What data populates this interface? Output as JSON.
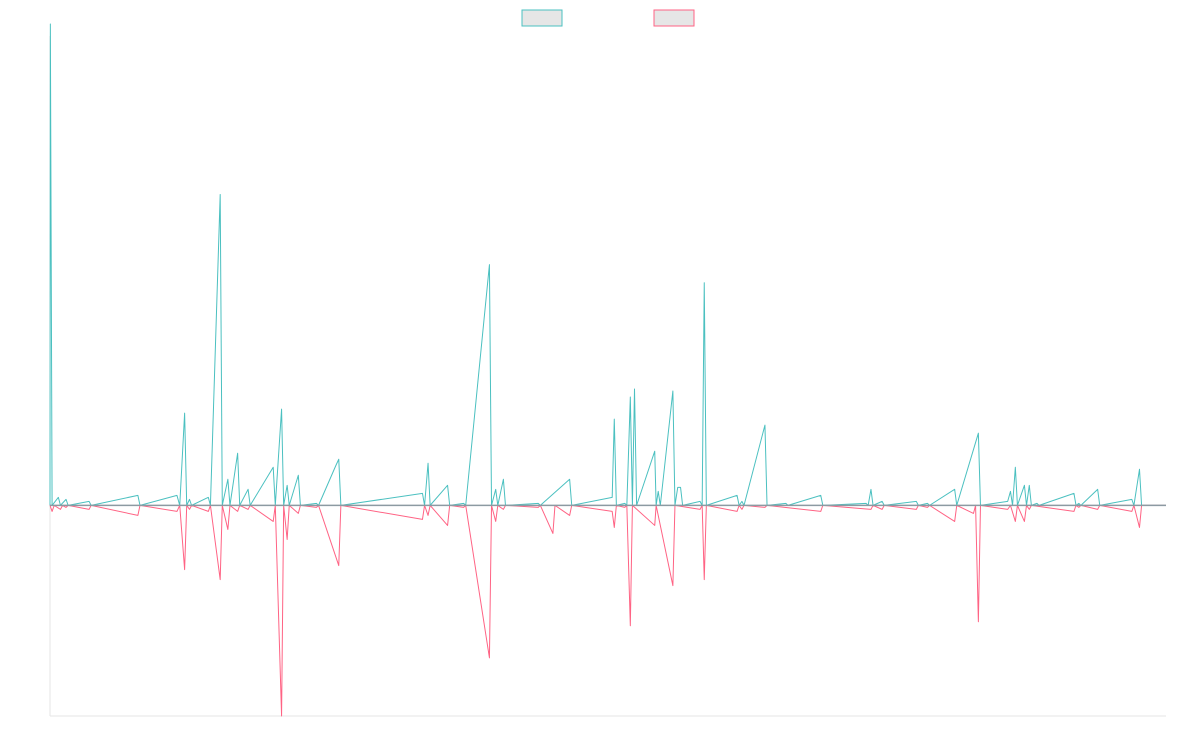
{
  "chart_data": {
    "type": "line",
    "title": "",
    "xlabel": "",
    "ylabel": "",
    "legend": {
      "position": "top-center",
      "entries": [
        {
          "label": "",
          "color": "#4bc0c0"
        },
        {
          "label": "",
          "color": "#ff6384"
        }
      ]
    },
    "x_range": [
      0,
      160
    ],
    "ylim": [
      -10.5,
      23.4
    ],
    "grid": false,
    "baseline": 0,
    "series": [
      {
        "name": "",
        "color": "#4bc0c0",
        "points": [
          [
            0,
            0
          ],
          [
            0.05,
            24.0
          ],
          [
            0.3,
            0
          ],
          [
            1.2,
            0.4
          ],
          [
            1.5,
            0
          ],
          [
            2.3,
            0.3
          ],
          [
            2.6,
            0
          ],
          [
            5.6,
            0.2
          ],
          [
            5.9,
            0
          ],
          [
            12.6,
            0.5
          ],
          [
            12.9,
            0
          ],
          [
            18.2,
            0.5
          ],
          [
            18.6,
            0
          ],
          [
            19.3,
            4.6
          ],
          [
            19.6,
            0
          ],
          [
            20.0,
            0.3
          ],
          [
            20.3,
            0
          ],
          [
            22.7,
            0.4
          ],
          [
            23.0,
            0
          ],
          [
            24.4,
            15.5
          ],
          [
            24.7,
            0
          ],
          [
            25.5,
            1.3
          ],
          [
            25.8,
            0
          ],
          [
            26.9,
            2.6
          ],
          [
            27.2,
            0
          ],
          [
            28.4,
            0.8
          ],
          [
            28.7,
            0
          ],
          [
            32.0,
            1.9
          ],
          [
            32.3,
            0
          ],
          [
            33.2,
            4.8
          ],
          [
            33.5,
            0
          ],
          [
            34.0,
            1.0
          ],
          [
            34.3,
            0
          ],
          [
            35.6,
            1.5
          ],
          [
            35.9,
            0
          ],
          [
            38.2,
            0.1
          ],
          [
            38.5,
            0
          ],
          [
            41.0,
            2.0
          ],
          [
            41.4,
            2.3
          ],
          [
            41.7,
            0
          ],
          [
            53.4,
            0.6
          ],
          [
            53.7,
            0
          ],
          [
            54.2,
            2.1
          ],
          [
            54.5,
            0
          ],
          [
            57.0,
            1.0
          ],
          [
            57.3,
            0
          ],
          [
            59.3,
            0.1
          ],
          [
            59.6,
            0
          ],
          [
            63.0,
            12.0
          ],
          [
            63.3,
            0
          ],
          [
            63.9,
            0.8
          ],
          [
            64.2,
            0
          ],
          [
            65.0,
            1.3
          ],
          [
            65.3,
            0
          ],
          [
            70.0,
            0.1
          ],
          [
            70.3,
            0
          ],
          [
            74.5,
            1.3
          ],
          [
            74.8,
            0
          ],
          [
            80.6,
            0.4
          ],
          [
            80.9,
            4.3
          ],
          [
            81.2,
            0
          ],
          [
            82.4,
            0.1
          ],
          [
            82.7,
            0
          ],
          [
            83.2,
            5.4
          ],
          [
            83.5,
            0
          ],
          [
            83.8,
            5.8
          ],
          [
            84.1,
            0
          ],
          [
            86.7,
            2.7
          ],
          [
            86.9,
            0
          ],
          [
            87.2,
            0.7
          ],
          [
            87.5,
            0
          ],
          [
            89.3,
            5.7
          ],
          [
            89.6,
            0
          ],
          [
            90.0,
            0.9
          ],
          [
            90.4,
            0.9
          ],
          [
            90.7,
            0
          ],
          [
            93.2,
            0.2
          ],
          [
            93.5,
            0
          ],
          [
            93.8,
            11.1
          ],
          [
            94.1,
            0
          ],
          [
            98.5,
            0.5
          ],
          [
            98.8,
            0
          ],
          [
            99.2,
            0.2
          ],
          [
            99.5,
            0
          ],
          [
            102.5,
            4.0
          ],
          [
            102.8,
            0
          ],
          [
            105.5,
            0.1
          ],
          [
            105.8,
            0
          ],
          [
            110.5,
            0.5
          ],
          [
            110.8,
            0
          ],
          [
            117.0,
            0.1
          ],
          [
            117.3,
            0
          ],
          [
            117.7,
            0.8
          ],
          [
            118.0,
            0
          ],
          [
            119.3,
            0.2
          ],
          [
            119.6,
            0
          ],
          [
            124.2,
            0.2
          ],
          [
            124.5,
            0
          ],
          [
            125.8,
            0.1
          ],
          [
            126.1,
            0
          ],
          [
            129.7,
            0.8
          ],
          [
            130.0,
            0
          ],
          [
            133.1,
            3.6
          ],
          [
            133.4,
            0
          ],
          [
            137.3,
            0.2
          ],
          [
            137.7,
            0.7
          ],
          [
            138.0,
            0
          ],
          [
            138.4,
            1.9
          ],
          [
            138.7,
            0
          ],
          [
            139.7,
            1.0
          ],
          [
            140.0,
            0
          ],
          [
            140.4,
            1.0
          ],
          [
            140.7,
            0
          ],
          [
            141.5,
            0.1
          ],
          [
            141.8,
            0
          ],
          [
            146.8,
            0.6
          ],
          [
            147.1,
            0
          ],
          [
            147.5,
            0.1
          ],
          [
            147.8,
            0
          ],
          [
            150.2,
            0.8
          ],
          [
            150.5,
            0
          ],
          [
            155.1,
            0.3
          ],
          [
            155.4,
            0
          ],
          [
            156.2,
            1.8
          ],
          [
            156.5,
            0
          ],
          [
            160,
            0
          ]
        ]
      },
      {
        "name": "",
        "color": "#ff6384",
        "points": [
          [
            0,
            0
          ],
          [
            0.3,
            -0.3
          ],
          [
            0.6,
            0
          ],
          [
            1.5,
            -0.2
          ],
          [
            1.8,
            0
          ],
          [
            2.3,
            -0.1
          ],
          [
            2.6,
            0
          ],
          [
            5.6,
            -0.2
          ],
          [
            5.9,
            0
          ],
          [
            12.6,
            -0.5
          ],
          [
            12.9,
            0
          ],
          [
            18.2,
            -0.3
          ],
          [
            18.6,
            0
          ],
          [
            19.3,
            -3.2
          ],
          [
            19.6,
            0
          ],
          [
            20.0,
            -0.2
          ],
          [
            20.3,
            0
          ],
          [
            22.7,
            -0.3
          ],
          [
            23.0,
            0
          ],
          [
            24.4,
            -3.7
          ],
          [
            24.7,
            0
          ],
          [
            25.5,
            -1.2
          ],
          [
            25.8,
            0
          ],
          [
            26.9,
            -0.3
          ],
          [
            27.2,
            0
          ],
          [
            28.4,
            -0.2
          ],
          [
            28.7,
            0
          ],
          [
            32.0,
            -0.8
          ],
          [
            32.3,
            0
          ],
          [
            33.2,
            -10.5
          ],
          [
            33.5,
            0
          ],
          [
            34.0,
            -1.7
          ],
          [
            34.3,
            0
          ],
          [
            35.6,
            -0.4
          ],
          [
            35.9,
            0
          ],
          [
            38.2,
            -0.1
          ],
          [
            38.5,
            0
          ],
          [
            41.4,
            -3.0
          ],
          [
            41.7,
            0
          ],
          [
            53.4,
            -0.7
          ],
          [
            53.7,
            0
          ],
          [
            54.2,
            -0.5
          ],
          [
            54.5,
            0
          ],
          [
            57.0,
            -1.0
          ],
          [
            57.3,
            0
          ],
          [
            59.3,
            -0.1
          ],
          [
            59.6,
            0
          ],
          [
            63.0,
            -7.6
          ],
          [
            63.3,
            0
          ],
          [
            63.9,
            -0.8
          ],
          [
            64.2,
            0
          ],
          [
            65.0,
            -0.2
          ],
          [
            65.3,
            0
          ],
          [
            70.0,
            -0.1
          ],
          [
            70.3,
            0
          ],
          [
            72.1,
            -1.4
          ],
          [
            72.4,
            0
          ],
          [
            74.5,
            -0.5
          ],
          [
            74.8,
            0
          ],
          [
            80.6,
            -0.3
          ],
          [
            80.9,
            -1.1
          ],
          [
            81.2,
            0
          ],
          [
            82.4,
            -0.1
          ],
          [
            82.7,
            0
          ],
          [
            83.2,
            -6.0
          ],
          [
            83.5,
            0
          ],
          [
            86.7,
            -1.0
          ],
          [
            86.9,
            0
          ],
          [
            89.3,
            -4.0
          ],
          [
            89.6,
            0
          ],
          [
            93.2,
            -0.2
          ],
          [
            93.5,
            0
          ],
          [
            93.8,
            -3.7
          ],
          [
            94.1,
            0
          ],
          [
            98.5,
            -0.3
          ],
          [
            98.8,
            0
          ],
          [
            99.2,
            -0.2
          ],
          [
            99.5,
            0
          ],
          [
            102.5,
            -0.1
          ],
          [
            102.8,
            0
          ],
          [
            110.5,
            -0.3
          ],
          [
            110.8,
            0
          ],
          [
            117.7,
            -0.2
          ],
          [
            118.0,
            0
          ],
          [
            119.3,
            -0.2
          ],
          [
            119.6,
            0
          ],
          [
            124.2,
            -0.2
          ],
          [
            124.5,
            0
          ],
          [
            125.8,
            -0.1
          ],
          [
            126.1,
            0
          ],
          [
            129.7,
            -0.8
          ],
          [
            130.0,
            0
          ],
          [
            132.4,
            -0.4
          ],
          [
            132.7,
            0
          ],
          [
            133.1,
            -5.8
          ],
          [
            133.4,
            0
          ],
          [
            137.3,
            -0.2
          ],
          [
            137.7,
            0
          ],
          [
            138.4,
            -0.8
          ],
          [
            138.7,
            0
          ],
          [
            139.7,
            -0.8
          ],
          [
            140.0,
            0
          ],
          [
            140.4,
            -0.2
          ],
          [
            140.7,
            0
          ],
          [
            146.8,
            -0.3
          ],
          [
            147.1,
            0
          ],
          [
            147.5,
            -0.1
          ],
          [
            147.8,
            0
          ],
          [
            150.2,
            -0.2
          ],
          [
            150.5,
            0
          ],
          [
            155.1,
            -0.3
          ],
          [
            155.4,
            0
          ],
          [
            156.2,
            -1.1
          ],
          [
            156.5,
            0
          ],
          [
            160,
            0
          ]
        ]
      }
    ]
  }
}
